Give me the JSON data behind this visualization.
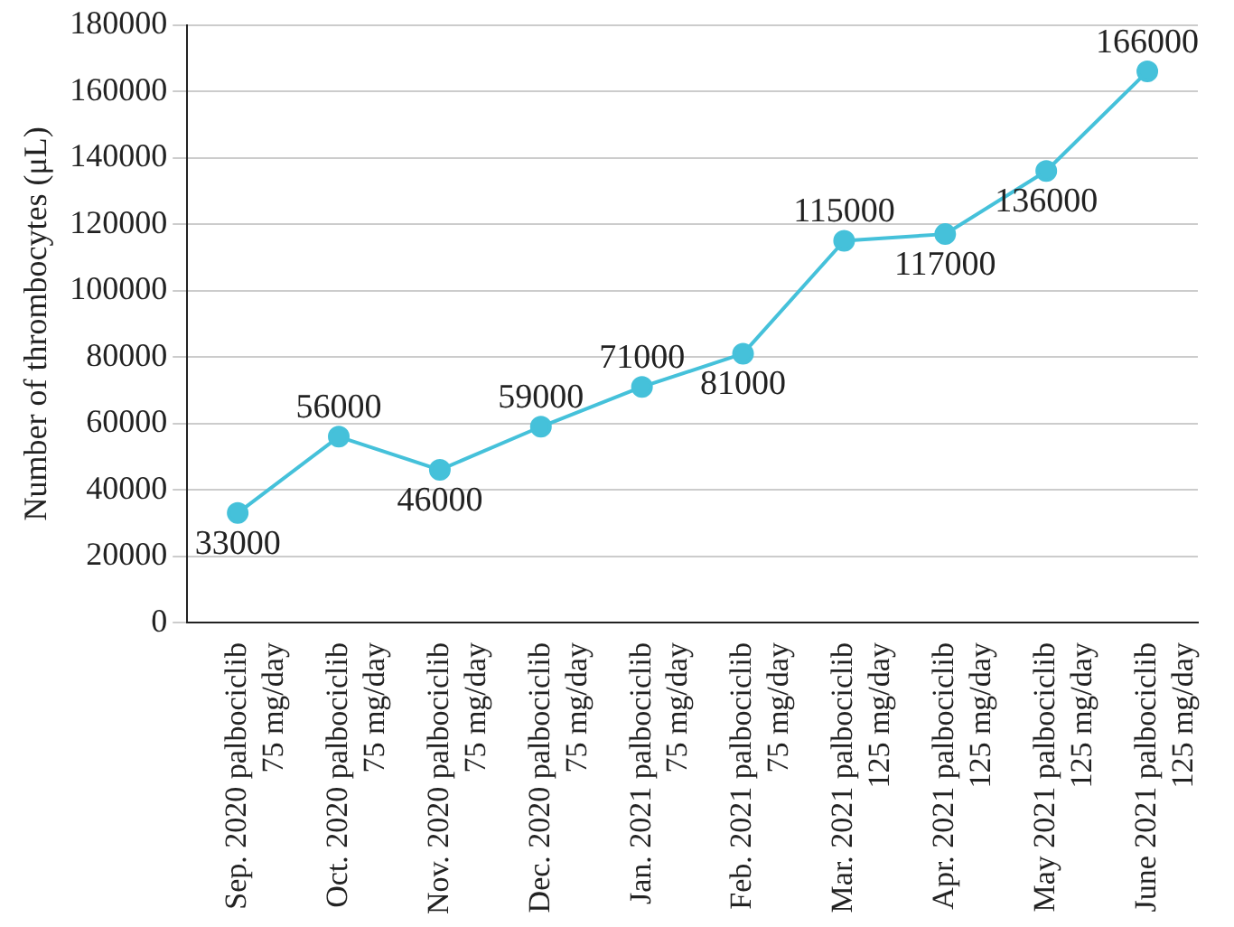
{
  "chart_data": {
    "type": "line",
    "ylabel": "Number of thrombocytes (μL)",
    "categories": [
      "Sep. 2020 palbociclib\n75 mg/day",
      "Oct. 2020 palbociclib\n75 mg/day",
      "Nov. 2020 palbociclib\n75 mg/day",
      "Dec. 2020 palbociclib\n75 mg/day",
      "Jan. 2021 palbociclib\n75 mg/day",
      "Feb. 2021 palbociclib\n75 mg/day",
      "Mar. 2021 palbociclib\n125 mg/day",
      "Apr. 2021 palbociclib\n125 mg/day",
      "May 2021 palbociclib\n125 mg/day",
      "June 2021 palbociclib\n125 mg/day"
    ],
    "values": [
      33000,
      56000,
      46000,
      59000,
      71000,
      81000,
      115000,
      117000,
      136000,
      166000
    ],
    "color": "#45c1da",
    "ylim": [
      0,
      180000
    ],
    "yticks": [
      0,
      20000,
      40000,
      60000,
      80000,
      100000,
      120000,
      140000,
      160000,
      180000
    ],
    "grid": "y",
    "marker": "circle",
    "line_style": "solid",
    "data_labels": true,
    "legend": false
  }
}
